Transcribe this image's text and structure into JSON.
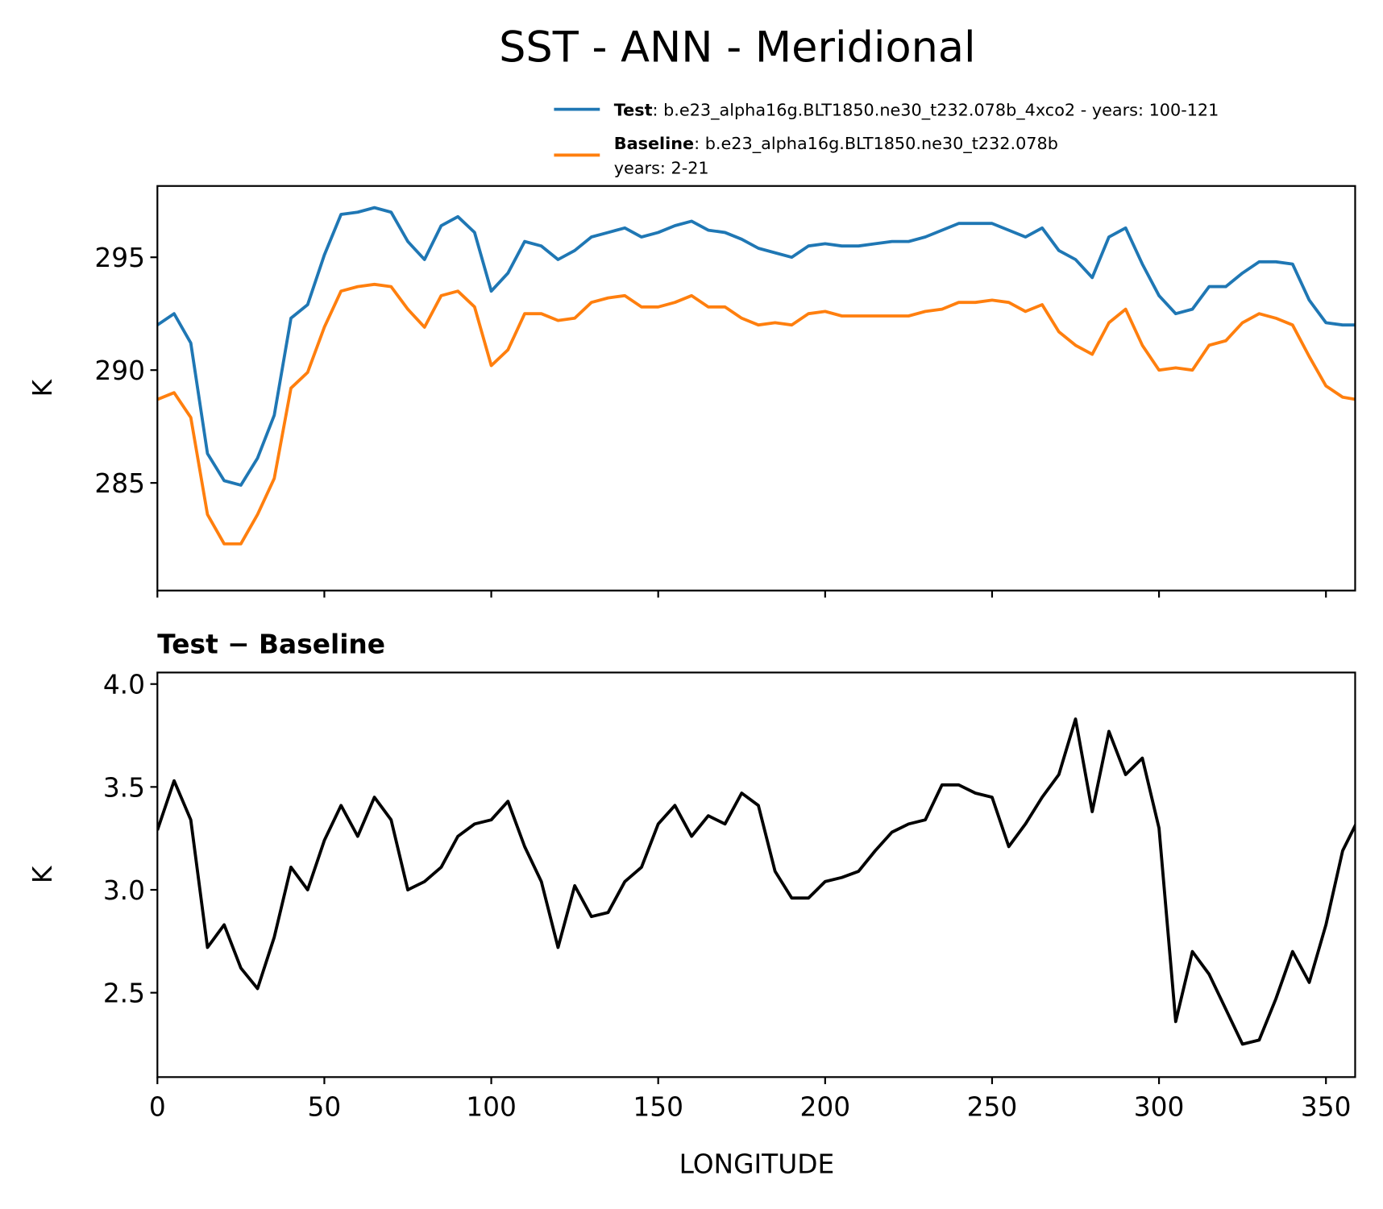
{
  "chart_data": [
    {
      "type": "line",
      "title": "SST - ANN - Meridional",
      "ylabel": "K",
      "x": [
        0,
        5,
        10,
        15,
        20,
        25,
        30,
        35,
        40,
        45,
        50,
        55,
        60,
        65,
        70,
        75,
        80,
        85,
        90,
        95,
        100,
        105,
        110,
        115,
        120,
        125,
        130,
        135,
        140,
        145,
        150,
        155,
        160,
        165,
        170,
        175,
        180,
        185,
        190,
        195,
        200,
        205,
        210,
        215,
        220,
        225,
        230,
        235,
        240,
        245,
        250,
        255,
        260,
        265,
        270,
        275,
        280,
        285,
        290,
        295,
        300,
        305,
        310,
        315,
        320,
        325,
        330,
        335,
        340,
        345,
        350,
        355,
        359
      ],
      "series": [
        {
          "name": "Test",
          "detail": [
            ": b.e23_alpha16g.BLT1850.ne30_t232.078b_4xco2 - years: 100-121"
          ],
          "color": "#1f77b4",
          "values": [
            292.0,
            292.5,
            291.2,
            286.3,
            285.1,
            284.9,
            286.1,
            288.0,
            292.3,
            292.9,
            295.1,
            296.9,
            297.0,
            297.2,
            297.0,
            295.7,
            294.9,
            296.4,
            296.8,
            296.1,
            293.5,
            294.3,
            295.7,
            295.5,
            294.9,
            295.3,
            295.9,
            296.1,
            296.3,
            295.9,
            296.1,
            296.4,
            296.6,
            296.2,
            296.1,
            295.8,
            295.4,
            295.2,
            295.0,
            295.5,
            295.6,
            295.5,
            295.5,
            295.6,
            295.7,
            295.7,
            295.9,
            296.2,
            296.5,
            296.5,
            296.5,
            296.2,
            295.9,
            296.3,
            295.3,
            294.9,
            294.1,
            295.9,
            296.3,
            294.7,
            293.3,
            292.5,
            292.7,
            293.7,
            293.7,
            294.3,
            294.8,
            294.8,
            294.7,
            293.1,
            292.1,
            292.0,
            292.0
          ]
        },
        {
          "name": "Baseline",
          "detail": [
            ": b.e23_alpha16g.BLT1850.ne30_t232.078b",
            "years: 2-21"
          ],
          "color": "#ff7f0e",
          "values": [
            288.7,
            289.0,
            287.9,
            283.6,
            282.3,
            282.3,
            283.6,
            285.2,
            289.2,
            289.9,
            291.9,
            293.5,
            293.7,
            293.8,
            293.7,
            292.7,
            291.9,
            293.3,
            293.5,
            292.8,
            290.2,
            290.9,
            292.5,
            292.5,
            292.2,
            292.3,
            293.0,
            293.2,
            293.3,
            292.8,
            292.8,
            293.0,
            293.3,
            292.8,
            292.8,
            292.3,
            292.0,
            292.1,
            292.0,
            292.5,
            292.6,
            292.4,
            292.4,
            292.4,
            292.4,
            292.4,
            292.6,
            292.7,
            293.0,
            293.0,
            293.1,
            293.0,
            292.6,
            292.9,
            291.7,
            291.1,
            290.7,
            292.1,
            292.7,
            291.1,
            290.0,
            290.1,
            290.0,
            291.1,
            291.3,
            292.1,
            292.5,
            292.3,
            292.0,
            290.6,
            289.3,
            288.8,
            288.7
          ]
        }
      ],
      "xlim": [
        0,
        358.75
      ],
      "xticks": [
        0,
        50,
        100,
        150,
        200,
        250,
        300,
        350
      ],
      "xtick_labels": false,
      "ylim": [
        280.23,
        298.16
      ],
      "yticks": [
        285,
        290,
        295
      ],
      "legend": "upper right"
    },
    {
      "type": "line",
      "title": "Test − Baseline",
      "ylabel": "K",
      "xlabel": "LONGITUDE",
      "x": [
        0,
        5,
        10,
        15,
        20,
        25,
        30,
        35,
        40,
        45,
        50,
        55,
        60,
        65,
        70,
        75,
        80,
        85,
        90,
        95,
        100,
        105,
        110,
        115,
        120,
        125,
        130,
        135,
        140,
        145,
        150,
        155,
        160,
        165,
        170,
        175,
        180,
        185,
        190,
        195,
        200,
        205,
        210,
        215,
        220,
        225,
        230,
        235,
        240,
        245,
        250,
        255,
        260,
        265,
        270,
        275,
        280,
        285,
        290,
        295,
        300,
        305,
        310,
        315,
        320,
        325,
        330,
        335,
        340,
        345,
        350,
        355,
        359
      ],
      "series": [
        {
          "color": "#000000",
          "values": [
            3.29,
            3.53,
            3.34,
            2.72,
            2.83,
            2.62,
            2.52,
            2.77,
            3.11,
            3.0,
            3.24,
            3.41,
            3.26,
            3.45,
            3.34,
            3.0,
            3.04,
            3.11,
            3.26,
            3.32,
            3.34,
            3.43,
            3.21,
            3.04,
            2.72,
            3.02,
            2.87,
            2.89,
            3.04,
            3.11,
            3.32,
            3.41,
            3.26,
            3.36,
            3.32,
            3.47,
            3.41,
            3.09,
            2.96,
            2.96,
            3.04,
            3.06,
            3.09,
            3.19,
            3.28,
            3.32,
            3.34,
            3.51,
            3.51,
            3.47,
            3.45,
            3.21,
            3.32,
            3.45,
            3.56,
            3.83,
            3.38,
            3.77,
            3.56,
            3.64,
            3.3,
            2.36,
            2.7,
            2.59,
            2.42,
            2.25,
            2.27,
            2.47,
            2.7,
            2.55,
            2.83,
            3.19,
            3.32
          ]
        }
      ],
      "xlim": [
        0,
        358.75
      ],
      "xticks": [
        0,
        50,
        100,
        150,
        200,
        250,
        300,
        350
      ],
      "xtick_labels": true,
      "ylim": [
        2.09,
        4.056
      ],
      "yticks": [
        2.5,
        {
          "value": 3,
          "label": "3.0"
        },
        3.5,
        {
          "value": 4,
          "label": "4.0"
        }
      ]
    }
  ]
}
